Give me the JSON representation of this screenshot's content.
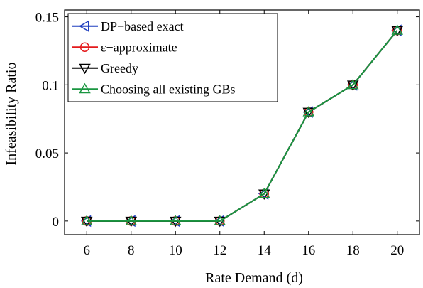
{
  "chart_data": {
    "type": "line",
    "title": "",
    "xlabel": "Rate Demand (d)",
    "ylabel": "Infeasibility Ratio",
    "xlim": [
      5,
      21
    ],
    "ylim": [
      -0.01,
      0.155
    ],
    "x": [
      6,
      8,
      10,
      12,
      14,
      16,
      18,
      20
    ],
    "x_ticks": [
      "6",
      "8",
      "10",
      "12",
      "14",
      "16",
      "18",
      "20"
    ],
    "y_ticks": [
      "0",
      "0.05",
      "0.1",
      "0.15"
    ],
    "grid": false,
    "legend_position": "top-left",
    "series": [
      {
        "name": "DP−based exact",
        "color": "#1f3fbf",
        "marker": "triangle-left",
        "values": [
          0,
          0,
          0,
          0,
          0.02,
          0.08,
          0.1,
          0.14
        ]
      },
      {
        "name": "ε−approximate",
        "color": "#e41a1c",
        "marker": "circle",
        "values": [
          0,
          0,
          0,
          0,
          0.02,
          0.08,
          0.1,
          0.14
        ]
      },
      {
        "name": "Greedy",
        "color": "#000000",
        "marker": "triangle-down",
        "values": [
          0,
          0,
          0,
          0,
          0.02,
          0.08,
          0.1,
          0.14
        ]
      },
      {
        "name": "Choosing all existing GBs",
        "color": "#1a9641",
        "marker": "triangle-up",
        "values": [
          0,
          0,
          0,
          0,
          0.02,
          0.08,
          0.1,
          0.14
        ]
      }
    ]
  }
}
